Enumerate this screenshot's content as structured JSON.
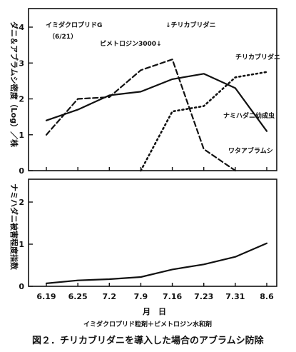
{
  "chart_data": [
    {
      "type": "line",
      "ylabel": "ダニ＆アブラムシ密度（Log）／株",
      "ylim": [
        0,
        4
      ],
      "yticks": [
        "0",
        "1",
        "2",
        "3",
        "4"
      ],
      "categories": [
        "6.19",
        "6.25",
        "7.2",
        "7.9",
        "7.16",
        "7.23",
        "7.31",
        "8.6"
      ],
      "series": [
        {
          "name": "ナミハダニ幼成虫",
          "style": "solid",
          "x": [
            6.19,
            6.25,
            7.2,
            7.9,
            7.16,
            7.23,
            7.31,
            8.6
          ],
          "values": [
            1.4,
            1.7,
            2.1,
            2.2,
            2.55,
            2.7,
            2.3,
            1.1
          ]
        },
        {
          "name": "ワタアブラムシ",
          "style": "dash",
          "x": [
            6.19,
            6.25,
            7.2,
            7.9,
            7.16,
            7.23,
            7.31
          ],
          "values": [
            1.0,
            2.0,
            2.05,
            2.8,
            3.1,
            0.6,
            0.0
          ]
        },
        {
          "name": "チリカブリダニ",
          "style": "dot",
          "x": [
            7.9,
            7.16,
            7.23,
            7.31,
            8.6
          ],
          "values": [
            0.0,
            1.65,
            1.8,
            2.6,
            2.75
          ]
        }
      ],
      "annotations": [
        {
          "text": "イミダクロプリドG",
          "sub": "（6/21）"
        },
        {
          "text": "ピメトロジン3000↓"
        },
        {
          "text": "↓チリカブリダニ"
        }
      ]
    },
    {
      "type": "line",
      "ylabel": "ナミハダニ被害程度指数",
      "ylim": [
        0,
        2
      ],
      "yticks": [
        "0",
        "1",
        "2"
      ],
      "categories": [
        "6.19",
        "6.25",
        "7.2",
        "7.9",
        "7.16",
        "7.23",
        "7.31",
        "8.6"
      ],
      "series": [
        {
          "name": "",
          "style": "solid",
          "x": [
            6.19,
            6.25,
            7.2,
            7.9,
            7.16,
            7.23,
            7.31,
            8.6
          ],
          "values": [
            0.07,
            0.14,
            0.17,
            0.22,
            0.4,
            0.52,
            0.7,
            1.02
          ]
        }
      ]
    }
  ],
  "xlabel": "月　日",
  "treatment_label": "イミダクロプリド粒剤＋ピメトロジン水和剤",
  "caption": "図２．チリカブリダニを導入した場合のアブラムシ防除"
}
